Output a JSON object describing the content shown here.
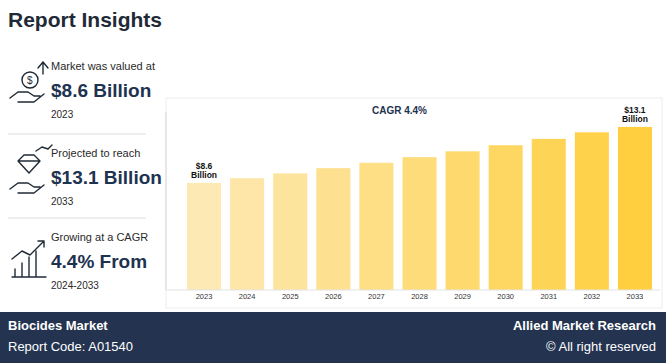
{
  "header": {
    "title": "Report Insights"
  },
  "insights": [
    {
      "label": "Market was valued at",
      "value": "$8.6 Billion",
      "note": "2023"
    },
    {
      "label": "Projected to reach",
      "value": "$13.1 Billion",
      "note": "2033"
    },
    {
      "label": "Growing at a CAGR",
      "value": "4.4% From",
      "note": "2024-2033"
    }
  ],
  "chart_data": {
    "type": "bar",
    "annotations": [
      "CAGR 4.4%"
    ],
    "categories": [
      "2023",
      "2024",
      "2025",
      "2026",
      "2027",
      "2028",
      "2029",
      "2030",
      "2031",
      "2032",
      "2033"
    ],
    "values": [
      8.6,
      8.98,
      9.37,
      9.79,
      10.22,
      10.67,
      11.14,
      11.63,
      12.14,
      12.67,
      13.1
    ],
    "value_labels": [
      "$8.6 Billion",
      null,
      null,
      null,
      null,
      null,
      null,
      null,
      null,
      null,
      "$13.1 Billion"
    ],
    "data_labels": true,
    "colors": [
      "#fde9b4",
      "#fde6a8",
      "#fde49d",
      "#fde191",
      "#fedf86",
      "#fedc7a",
      "#fed96e",
      "#fed763",
      "#fed457",
      "#ffd24c",
      "#ffcf40"
    ],
    "ylim": [
      0,
      14.3
    ],
    "yticks": [],
    "tick_labels": "x",
    "grid": false
  },
  "footer": {
    "title": "Biocides Market",
    "report_code": "Report Code: A01540",
    "brand": "Allied Market Research",
    "rights": "© All right reserved"
  }
}
